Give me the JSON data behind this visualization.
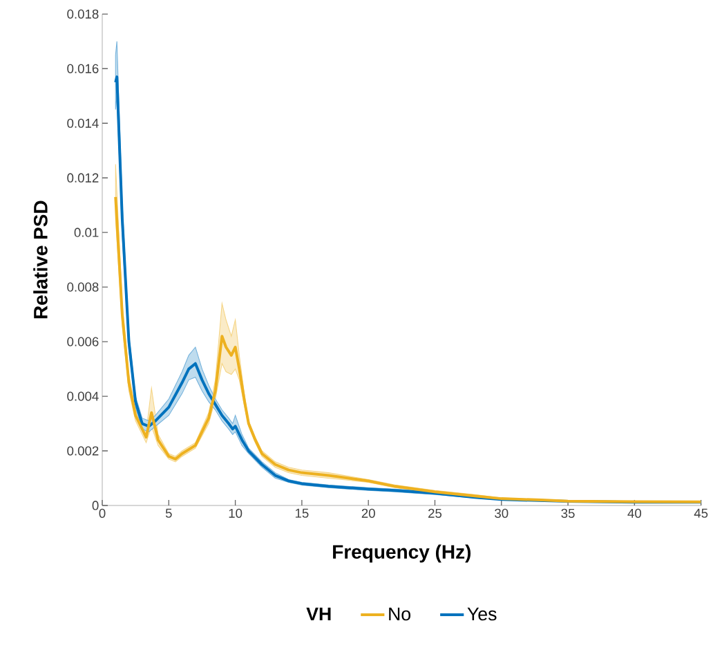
{
  "chart_data": {
    "type": "line",
    "xlabel": "Frequency (Hz)",
    "ylabel": "Relative PSD",
    "legend_title": "VH",
    "legend": "bottom",
    "grid": false,
    "marker": "none",
    "line_style": "solid",
    "xlim": [
      0,
      45
    ],
    "ylim": [
      0,
      0.018
    ],
    "xticks": [
      0,
      5,
      10,
      15,
      20,
      25,
      30,
      35,
      40,
      45
    ],
    "yticks": [
      0,
      0.002,
      0.004,
      0.006,
      0.008,
      0.01,
      0.012,
      0.014,
      0.016,
      0.018
    ],
    "series": [
      {
        "name": "No",
        "color": "#EDB120",
        "x": [
          1,
          1.5,
          2,
          2.5,
          3,
          3.3,
          3.7,
          4.2,
          5,
          5.5,
          6,
          7,
          8,
          8.5,
          9,
          9.3,
          9.7,
          10,
          10.3,
          10.7,
          11,
          11.5,
          12,
          13,
          14,
          15,
          17,
          20,
          22,
          25,
          28,
          30,
          33,
          35,
          40,
          45
        ],
        "values": [
          0.0113,
          0.007,
          0.0045,
          0.0033,
          0.0028,
          0.0025,
          0.0034,
          0.0024,
          0.0018,
          0.0017,
          0.0019,
          0.0022,
          0.0032,
          0.0042,
          0.0062,
          0.0058,
          0.0055,
          0.0058,
          0.005,
          0.0038,
          0.003,
          0.0024,
          0.0019,
          0.0015,
          0.0013,
          0.0012,
          0.0011,
          0.0009,
          0.0007,
          0.0005,
          0.00035,
          0.00025,
          0.0002,
          0.00016,
          0.00014,
          0.00013
        ],
        "lower": [
          0.0105,
          0.0066,
          0.0042,
          0.0031,
          0.0026,
          0.0023,
          0.0029,
          0.0022,
          0.0017,
          0.0016,
          0.0018,
          0.0021,
          0.003,
          0.0039,
          0.0052,
          0.0049,
          0.0048,
          0.005,
          0.0046,
          0.0036,
          0.0029,
          0.0023,
          0.0018,
          0.0014,
          0.0012,
          0.0011,
          0.001,
          0.00085,
          0.00065,
          0.00045,
          0.0003,
          0.00022,
          0.00018,
          0.00015,
          0.00013,
          0.00012
        ],
        "upper": [
          0.0125,
          0.0074,
          0.0048,
          0.0035,
          0.003,
          0.0027,
          0.0043,
          0.0026,
          0.0019,
          0.0018,
          0.002,
          0.0023,
          0.0034,
          0.0046,
          0.0074,
          0.0068,
          0.0062,
          0.0068,
          0.0055,
          0.004,
          0.0031,
          0.0025,
          0.002,
          0.0016,
          0.0014,
          0.0013,
          0.0012,
          0.00095,
          0.00075,
          0.00055,
          0.0004,
          0.00028,
          0.00022,
          0.00017,
          0.00015,
          0.00014
        ]
      },
      {
        "name": "Yes",
        "color": "#0072BD",
        "x": [
          1,
          1.1,
          1.5,
          2,
          2.5,
          3,
          3.5,
          4,
          5,
          6,
          6.5,
          7,
          7.5,
          8,
          8.5,
          9,
          9.5,
          9.8,
          10,
          10.5,
          11,
          12,
          13,
          14,
          15,
          17,
          20,
          22,
          25,
          28,
          30,
          35,
          40,
          45
        ],
        "values": [
          0.0155,
          0.0157,
          0.0105,
          0.006,
          0.0038,
          0.003,
          0.0029,
          0.0031,
          0.0036,
          0.0045,
          0.005,
          0.0052,
          0.0046,
          0.0041,
          0.0037,
          0.0033,
          0.003,
          0.0028,
          0.0029,
          0.0024,
          0.002,
          0.0015,
          0.0011,
          0.0009,
          0.0008,
          0.0007,
          0.0006,
          0.00055,
          0.00045,
          0.0003,
          0.00022,
          0.00015,
          0.00012,
          0.00012
        ],
        "lower": [
          0.0145,
          0.015,
          0.0099,
          0.0057,
          0.0036,
          0.0028,
          0.0027,
          0.0029,
          0.0033,
          0.0041,
          0.0046,
          0.0047,
          0.0042,
          0.0038,
          0.0035,
          0.0031,
          0.0028,
          0.0026,
          0.0027,
          0.0022,
          0.0019,
          0.0014,
          0.001,
          0.00085,
          0.00075,
          0.00065,
          0.00055,
          0.0005,
          0.0004,
          0.00027,
          0.0002,
          0.00014,
          0.00011,
          0.00011
        ],
        "upper": [
          0.0165,
          0.017,
          0.0111,
          0.0063,
          0.004,
          0.0032,
          0.0031,
          0.0033,
          0.0039,
          0.0049,
          0.0055,
          0.0058,
          0.005,
          0.0044,
          0.0039,
          0.0035,
          0.0032,
          0.003,
          0.0033,
          0.0026,
          0.0021,
          0.0016,
          0.0012,
          0.00095,
          0.00085,
          0.00075,
          0.00065,
          0.0006,
          0.0005,
          0.00033,
          0.00024,
          0.00016,
          0.00013,
          0.00013
        ]
      }
    ]
  }
}
